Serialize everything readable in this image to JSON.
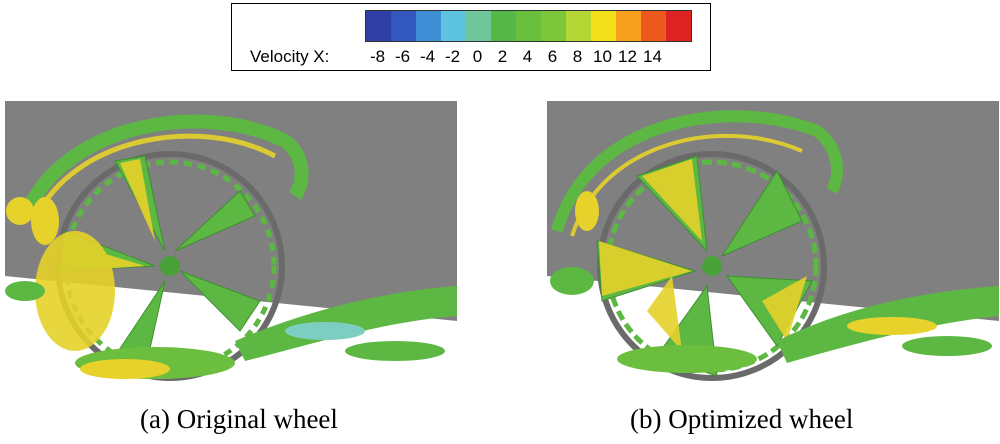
{
  "legend": {
    "title": "Velocity X:",
    "ticks": [
      "-8",
      "-6",
      "-4",
      "-2",
      "0",
      "2",
      "4",
      "6",
      "8",
      "10",
      "12",
      "14"
    ],
    "colors": [
      "#2f3fa6",
      "#3358bd",
      "#3f8fd6",
      "#5ec3e0",
      "#6dc79a",
      "#57b84a",
      "#69bf3e",
      "#7dc63a",
      "#b5d634",
      "#f2e11a",
      "#f7a11e",
      "#ee5a1e",
      "#dd2222"
    ]
  },
  "panels": [
    {
      "caption": "(a) Original wheel"
    },
    {
      "caption": "(b) Optimized wheel"
    }
  ],
  "colors": {
    "background_gray": "#808080",
    "iso_green": "#5cb842",
    "iso_yellow": "#e6d22a",
    "iso_cyan": "#7ccfc0"
  }
}
